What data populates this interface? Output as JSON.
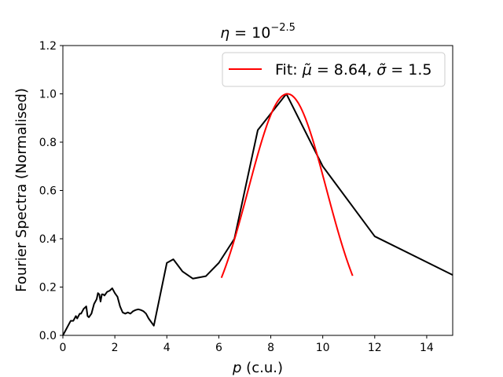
{
  "chart_data": {
    "type": "line",
    "title_base": "η = 10",
    "title_exponent": "−2.5",
    "xlabel_var": "p",
    "xlabel_unit": " (c.u.)",
    "ylabel": "Fourier Spectra (Normalised)",
    "xlim": [
      0,
      15
    ],
    "ylim": [
      0,
      1.2
    ],
    "xticks": [
      0,
      2,
      4,
      6,
      8,
      10,
      12,
      14
    ],
    "yticks": [
      0.0,
      0.2,
      0.4,
      0.6,
      0.8,
      1.0,
      1.2
    ],
    "xtick_labels": [
      "0",
      "2",
      "4",
      "6",
      "8",
      "10",
      "12",
      "14"
    ],
    "ytick_labels": [
      "0.0",
      "0.2",
      "0.4",
      "0.6",
      "0.8",
      "1.0",
      "1.2"
    ],
    "legend_position": "top-right",
    "grid": false,
    "series": [
      {
        "color": "#000000",
        "x": [
          0.0,
          0.1,
          0.2,
          0.3,
          0.4,
          0.5,
          0.55,
          0.6,
          0.65,
          0.7,
          0.8,
          0.9,
          0.95,
          1.0,
          1.1,
          1.2,
          1.3,
          1.35,
          1.4,
          1.45,
          1.5,
          1.55,
          1.6,
          1.7,
          1.8,
          1.9,
          2.0,
          2.1,
          2.2,
          2.3,
          2.4,
          2.5,
          2.6,
          2.7,
          2.8,
          2.9,
          3.0,
          3.1,
          3.2,
          3.3,
          3.5,
          4.0,
          4.25,
          4.6,
          5.0,
          5.5,
          6.0,
          6.6,
          7.5,
          8.6,
          10.0,
          12.0,
          15.0
        ],
        "y": [
          0.0,
          0.02,
          0.04,
          0.06,
          0.06,
          0.08,
          0.07,
          0.08,
          0.09,
          0.09,
          0.11,
          0.12,
          0.08,
          0.075,
          0.09,
          0.13,
          0.15,
          0.175,
          0.17,
          0.14,
          0.17,
          0.17,
          0.165,
          0.18,
          0.185,
          0.195,
          0.175,
          0.16,
          0.12,
          0.095,
          0.09,
          0.095,
          0.09,
          0.1,
          0.105,
          0.108,
          0.105,
          0.1,
          0.09,
          0.07,
          0.04,
          0.3,
          0.315,
          0.265,
          0.235,
          0.245,
          0.3,
          0.4,
          0.85,
          1.0,
          0.7,
          0.41,
          0.25
        ]
      },
      {
        "name": "Fit: μ̃ = 8.64, σ̃ = 1.5",
        "color": "#ff0000",
        "gaussian": {
          "mu": 8.64,
          "sigma": 1.5,
          "amplitude": 1.0,
          "x_from": 6.1,
          "x_to": 11.15
        }
      }
    ]
  }
}
